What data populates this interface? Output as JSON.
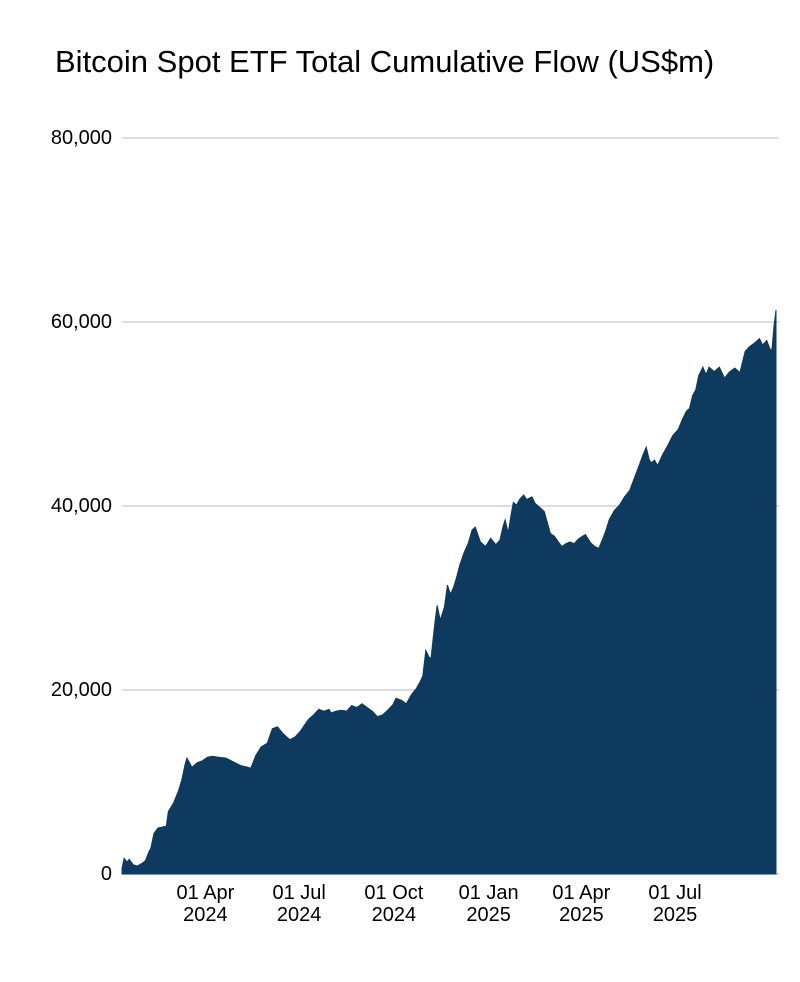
{
  "header": {
    "title": "Bitcoin Spot ETF Total Cumulative Flow (US$m)"
  },
  "colors": {
    "background": "#ffffff",
    "area_fill": "#0d3a5e",
    "gridline": "#c8c8c8",
    "text": "#000000"
  },
  "chart_data": {
    "type": "area",
    "title": "Bitcoin Spot ETF Total Cumulative Flow (US$m)",
    "unit": "US$m",
    "grid": true,
    "legend_position": "none",
    "ylim": [
      0,
      80000
    ],
    "x_domain": [
      "2024-01-11",
      "2025-10-07"
    ],
    "y_ticks": [
      {
        "value": 0,
        "label": "0"
      },
      {
        "value": 20000,
        "label": "20,000"
      },
      {
        "value": 40000,
        "label": "40,000"
      },
      {
        "value": 60000,
        "label": "60,000"
      },
      {
        "value": 80000,
        "label": "80,000"
      }
    ],
    "x_ticks": [
      {
        "date": "2024-04-01",
        "label": "01 Apr\n2024"
      },
      {
        "date": "2024-07-01",
        "label": "01 Jul\n2024"
      },
      {
        "date": "2024-10-01",
        "label": "01 Oct\n2024"
      },
      {
        "date": "2025-01-01",
        "label": "01 Jan\n2025"
      },
      {
        "date": "2025-04-01",
        "label": "01 Apr\n2025"
      },
      {
        "date": "2025-07-01",
        "label": "01 Jul\n2025"
      }
    ],
    "series": [
      {
        "name": "Total cumulative flow",
        "dates": [
          "2024-01-11",
          "2024-01-13",
          "2024-01-16",
          "2024-01-18",
          "2024-01-22",
          "2024-01-26",
          "2024-01-31",
          "2024-02-03",
          "2024-02-06",
          "2024-02-08",
          "2024-02-11",
          "2024-02-15",
          "2024-02-19",
          "2024-02-23",
          "2024-02-25",
          "2024-03-01",
          "2024-03-06",
          "2024-03-09",
          "2024-03-12",
          "2024-03-14",
          "2024-03-19",
          "2024-03-24",
          "2024-03-29",
          "2024-04-03",
          "2024-04-08",
          "2024-04-13",
          "2024-04-21",
          "2024-04-28",
          "2024-05-05",
          "2024-05-12",
          "2024-05-15",
          "2024-05-20",
          "2024-05-25",
          "2024-05-31",
          "2024-06-05",
          "2024-06-10",
          "2024-06-15",
          "2024-06-20",
          "2024-06-22",
          "2024-06-27",
          "2024-07-02",
          "2024-07-10",
          "2024-07-15",
          "2024-07-20",
          "2024-07-25",
          "2024-07-30",
          "2024-08-01",
          "2024-08-06",
          "2024-08-11",
          "2024-08-16",
          "2024-08-21",
          "2024-08-26",
          "2024-08-31",
          "2024-09-05",
          "2024-09-10",
          "2024-09-15",
          "2024-09-20",
          "2024-09-25",
          "2024-09-30",
          "2024-10-03",
          "2024-10-08",
          "2024-10-13",
          "2024-10-18",
          "2024-10-23",
          "2024-10-26",
          "2024-10-29",
          "2024-11-01",
          "2024-11-04",
          "2024-11-06",
          "2024-11-08",
          "2024-11-10",
          "2024-11-12",
          "2024-11-15",
          "2024-11-19",
          "2024-11-22",
          "2024-11-25",
          "2024-11-28",
          "2024-12-01",
          "2024-12-04",
          "2024-12-08",
          "2024-12-12",
          "2024-12-16",
          "2024-12-19",
          "2024-12-24",
          "2024-12-29",
          "2025-01-03",
          "2025-01-08",
          "2025-01-12",
          "2025-01-15",
          "2025-01-17",
          "2025-01-20",
          "2025-01-23",
          "2025-01-25",
          "2025-01-28",
          "2025-01-31",
          "2025-02-04",
          "2025-02-07",
          "2025-02-12",
          "2025-02-15",
          "2025-02-19",
          "2025-02-24",
          "2025-02-27",
          "2025-03-02",
          "2025-03-06",
          "2025-03-09",
          "2025-03-13",
          "2025-03-17",
          "2025-03-21",
          "2025-03-25",
          "2025-03-29",
          "2025-04-02",
          "2025-04-05",
          "2025-04-10",
          "2025-04-14",
          "2025-04-18",
          "2025-04-22",
          "2025-04-25",
          "2025-04-28",
          "2025-05-03",
          "2025-05-08",
          "2025-05-13",
          "2025-05-18",
          "2025-05-23",
          "2025-05-28",
          "2025-05-31",
          "2025-06-03",
          "2025-06-06",
          "2025-06-08",
          "2025-06-11",
          "2025-06-14",
          "2025-06-19",
          "2025-06-24",
          "2025-06-29",
          "2025-07-04",
          "2025-07-08",
          "2025-07-12",
          "2025-07-15",
          "2025-07-18",
          "2025-07-21",
          "2025-07-24",
          "2025-07-28",
          "2025-07-31",
          "2025-08-03",
          "2025-08-08",
          "2025-08-13",
          "2025-08-18",
          "2025-08-23",
          "2025-08-28",
          "2025-09-02",
          "2025-09-07",
          "2025-09-11",
          "2025-09-16",
          "2025-09-21",
          "2025-09-24",
          "2025-09-28",
          "2025-10-01",
          "2025-10-03",
          "2025-10-05",
          "2025-10-07"
        ],
        "values": [
          600,
          1700,
          1300,
          1600,
          1000,
          870,
          1200,
          1500,
          2400,
          2800,
          4400,
          5000,
          5100,
          5200,
          6800,
          7700,
          9100,
          10200,
          11800,
          12600,
          11600,
          12100,
          12300,
          12700,
          12800,
          12700,
          12600,
          12200,
          11800,
          11600,
          11500,
          12900,
          13800,
          14200,
          15800,
          16000,
          15300,
          14800,
          14600,
          14900,
          15500,
          16800,
          17300,
          17900,
          17700,
          17900,
          17500,
          17700,
          17800,
          17700,
          18300,
          18100,
          18500,
          18100,
          17700,
          17100,
          17300,
          17800,
          18400,
          19100,
          18900,
          18500,
          19500,
          20200,
          20800,
          21500,
          24300,
          23600,
          23400,
          25500,
          27500,
          29200,
          27600,
          29000,
          31400,
          30400,
          31200,
          32300,
          33600,
          34900,
          35900,
          37400,
          37700,
          36100,
          35600,
          36500,
          35800,
          36300,
          37800,
          38500,
          37100,
          39200,
          40400,
          40100,
          40700,
          41200,
          40700,
          41000,
          40300,
          39900,
          39400,
          38200,
          37000,
          36700,
          36200,
          35600,
          35900,
          36100,
          35900,
          36400,
          36700,
          36900,
          36000,
          35600,
          35400,
          36500,
          37400,
          38500,
          39500,
          40100,
          41000,
          41700,
          43200,
          44700,
          45600,
          46400,
          45000,
          44700,
          45000,
          44400,
          45600,
          46600,
          47700,
          48300,
          49400,
          50300,
          50600,
          52000,
          52600,
          54200,
          55100,
          54300,
          55100,
          54600,
          55100,
          53900,
          54600,
          55000,
          54500,
          56800,
          57300,
          57700,
          58200,
          57500,
          58000,
          57100,
          56900,
          59500,
          61300
        ]
      }
    ]
  }
}
